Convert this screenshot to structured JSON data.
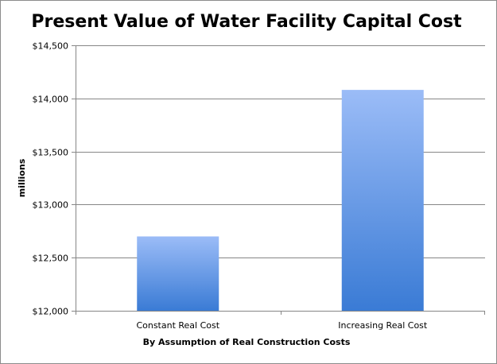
{
  "chart_data": {
    "type": "bar",
    "title": "Present Value of Water Facility Capital Cost",
    "xlabel": "By Assumption of Real Construction Costs",
    "ylabel": "millions",
    "categories": [
      "Constant Real Cost",
      "Increasing Real Cost"
    ],
    "values": [
      12700,
      14080
    ],
    "ylim": [
      12000,
      14500
    ],
    "yticks": [
      12000,
      12500,
      13000,
      13500,
      14000,
      14500
    ],
    "ytick_labels": [
      "$12,000",
      "$12,500",
      "$13,000",
      "$13,500",
      "$14,000",
      "$14,500"
    ],
    "grid": true,
    "legend": "none",
    "bar_color_top": "#9bbcf7",
    "bar_color_bottom": "#3a7bd5"
  }
}
